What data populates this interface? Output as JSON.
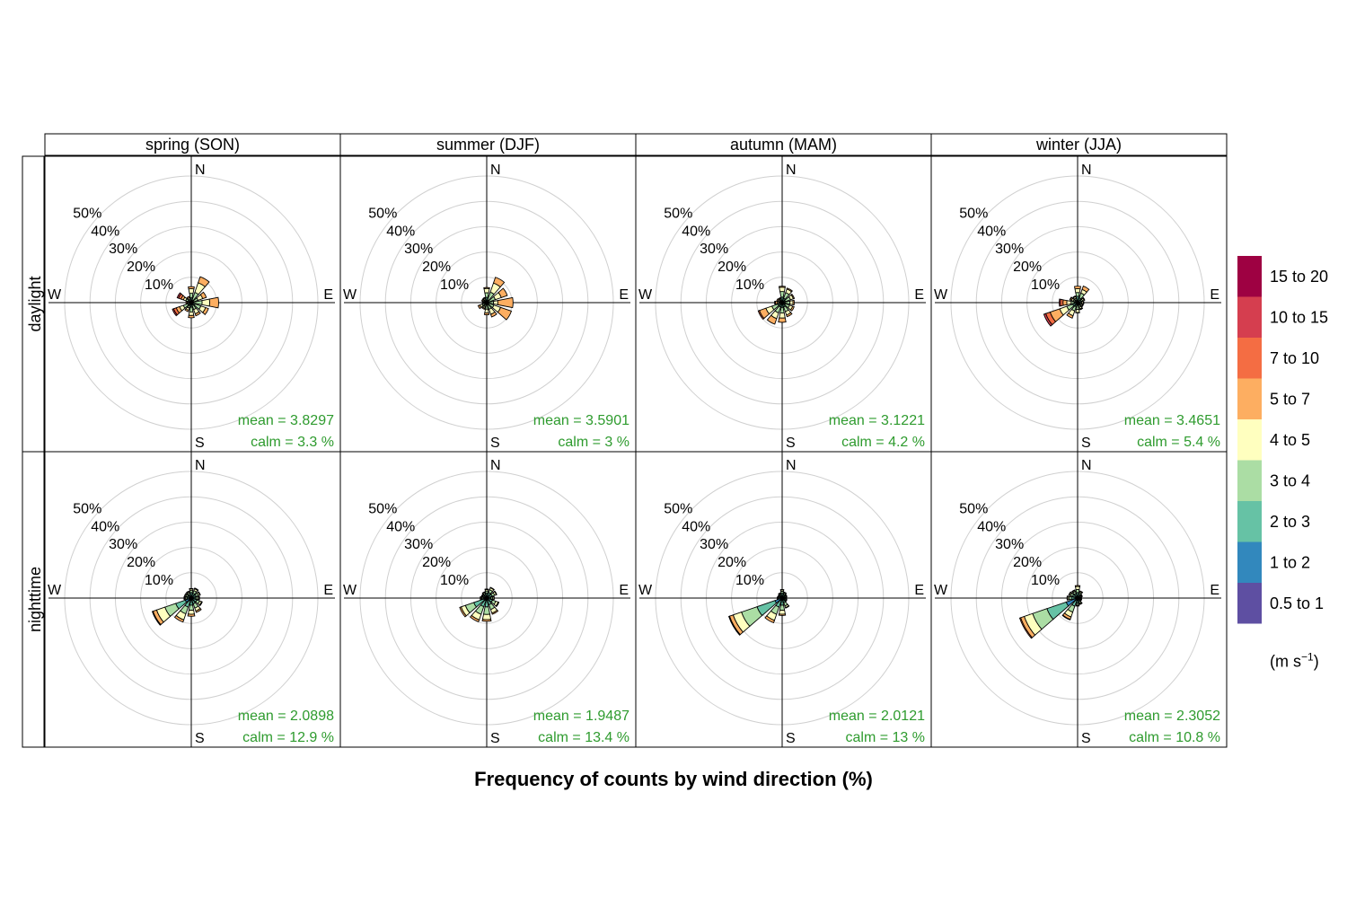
{
  "chart_data": {
    "type": "windrose",
    "title": "Frequency of counts by wind direction (%)",
    "columns": [
      "spring (SON)",
      "summer (DJF)",
      "autumn (MAM)",
      "winter (JJA)"
    ],
    "rows": [
      "daylight",
      "nighttime"
    ],
    "ring_percent": [
      10,
      20,
      30,
      40,
      50
    ],
    "ring_labels": [
      "10%",
      "20%",
      "30%",
      "40%",
      "50%"
    ],
    "direction_labels": {
      "N": "N",
      "E": "E",
      "S": "S",
      "W": "W"
    },
    "speed_bins": [
      "0.5 to 1",
      "1 to 2",
      "2 to 3",
      "3 to 4",
      "4 to 5",
      "5 to 7",
      "7 to 10",
      "10 to 15",
      "15 to 20"
    ],
    "bin_colors": [
      "#5e4fa2",
      "#3288bd",
      "#66c2a5",
      "#abdda4",
      "#ffffbf",
      "#fdae61",
      "#f46d43",
      "#d53e4f",
      "#9e0142"
    ],
    "legend_unit_prefix": "(m s",
    "legend_unit_exponent": "−1",
    "legend_unit_suffix": ")",
    "directions_deg": [
      0,
      30,
      60,
      90,
      120,
      150,
      180,
      210,
      240,
      270,
      300,
      330
    ],
    "panels": [
      {
        "column": "spring (SON)",
        "row": "daylight",
        "mean_label": "mean  =  3.8297",
        "calm_label": "calm =  3.3 %",
        "sectors": [
          [
            0,
            0.3,
            1.6,
            1.8,
            1.8,
            0.8,
            0,
            0,
            0
          ],
          [
            0,
            0.2,
            0.8,
            3.3,
            4.0,
            2.5,
            0,
            0,
            0
          ],
          [
            0,
            0.2,
            0.8,
            1.8,
            2.0,
            1.5,
            0,
            0,
            0
          ],
          [
            0,
            0.2,
            0.8,
            3.3,
            3.0,
            3.5,
            0,
            0,
            0
          ],
          [
            0,
            0.3,
            1.3,
            2.4,
            2.0,
            1.2,
            0,
            0,
            0
          ],
          [
            0,
            0.2,
            0.8,
            1.9,
            1.8,
            0.8,
            0,
            0,
            0
          ],
          [
            0,
            0.3,
            1.5,
            1.9,
            1.4,
            0.9,
            0,
            0,
            0
          ],
          [
            0,
            0.3,
            1.0,
            1.0,
            0.9,
            0.6,
            0,
            0,
            0
          ],
          [
            0,
            0.3,
            1.2,
            1.8,
            1.6,
            1.4,
            1.1,
            0.5,
            0
          ],
          [
            0,
            0.2,
            0.4,
            0.5,
            0.5,
            0.5,
            0,
            0,
            0
          ],
          [
            0,
            0.3,
            1.0,
            1.0,
            1.0,
            1.0,
            1.0,
            0.6,
            0
          ],
          [
            0,
            0.2,
            0.5,
            0.7,
            0.7,
            0.5,
            0,
            0,
            0
          ]
        ]
      },
      {
        "column": "summer (DJF)",
        "row": "daylight",
        "mean_label": "mean  =  3.5901",
        "calm_label": "calm =  3 %",
        "sectors": [
          [
            0,
            0.3,
            1.8,
            1.8,
            1.7,
            0.4,
            0,
            0,
            0
          ],
          [
            0,
            0.2,
            0.8,
            3.4,
            3.8,
            2.4,
            0,
            0,
            0
          ],
          [
            0,
            0.2,
            0.7,
            2.7,
            2.5,
            2.5,
            0,
            0,
            0
          ],
          [
            0,
            0.2,
            0.6,
            1.9,
            1.7,
            6.0,
            0,
            0,
            0
          ],
          [
            0,
            0.2,
            0.7,
            2.1,
            2.8,
            4.5,
            0,
            0,
            0
          ],
          [
            0,
            0.2,
            0.7,
            1.9,
            2.1,
            1.1,
            0,
            0,
            0
          ],
          [
            0,
            0.2,
            0.8,
            1.6,
            1.5,
            0.7,
            0,
            0,
            0
          ],
          [
            0,
            0.2,
            0.7,
            0.8,
            0.7,
            0.4,
            0,
            0,
            0
          ],
          [
            0,
            0.2,
            0.7,
            1.0,
            1.0,
            0.7,
            0,
            0,
            0
          ],
          [
            0,
            0.2,
            0.4,
            0.4,
            0.4,
            0.3,
            0,
            0,
            0
          ],
          [
            0,
            0.2,
            0.5,
            0.5,
            0.5,
            0.4,
            0,
            0,
            0
          ],
          [
            0,
            0.2,
            0.5,
            0.6,
            0.6,
            0.3,
            0,
            0,
            0
          ]
        ]
      },
      {
        "column": "autumn (MAM)",
        "row": "daylight",
        "mean_label": "mean  =  3.1221",
        "calm_label": "calm =  4.2 %",
        "sectors": [
          [
            0,
            0.3,
            1.9,
            2.2,
            1.7,
            0.4,
            0,
            0,
            0
          ],
          [
            0,
            0.3,
            1.5,
            2.4,
            1.5,
            0.4,
            0,
            0,
            0
          ],
          [
            0,
            0.3,
            1.0,
            2.2,
            1.2,
            0.4,
            0,
            0,
            0
          ],
          [
            0,
            0.3,
            0.8,
            2.0,
            1.2,
            0.5,
            0,
            0,
            0
          ],
          [
            0,
            0.3,
            1.0,
            1.8,
            1.3,
            0.6,
            0,
            0,
            0
          ],
          [
            0,
            0.3,
            1.5,
            2.0,
            1.4,
            0.7,
            0,
            0,
            0
          ],
          [
            0,
            0.3,
            1.6,
            2.2,
            2.0,
            1.7,
            0,
            0,
            0
          ],
          [
            0,
            0.3,
            1.5,
            2.5,
            2.4,
            2.3,
            0,
            0,
            0
          ],
          [
            0,
            0.3,
            1.5,
            2.5,
            2.5,
            2.7,
            0.5,
            0,
            0
          ],
          [
            0,
            0.2,
            0.5,
            0.6,
            0.6,
            0.8,
            0.3,
            0,
            0
          ],
          [
            0,
            0.2,
            0.5,
            0.5,
            0.6,
            0.5,
            0,
            0,
            0
          ],
          [
            0,
            0.2,
            0.5,
            0.5,
            0.5,
            0.4,
            0,
            0,
            0
          ]
        ]
      },
      {
        "column": "winter (JJA)",
        "row": "daylight",
        "mean_label": "mean  =  3.4651",
        "calm_label": "calm =  5.4 %",
        "sectors": [
          [
            0,
            0.5,
            2.0,
            1.5,
            1.5,
            1.0,
            0,
            0,
            0
          ],
          [
            0,
            0.5,
            1.5,
            2.0,
            1.5,
            1.4,
            0,
            0,
            0
          ],
          [
            0,
            0.5,
            1.0,
            0.6,
            0.6,
            0.3,
            0,
            0,
            0
          ],
          [
            0,
            0.4,
            0.7,
            0.6,
            0.6,
            0.2,
            0,
            0,
            0
          ],
          [
            0,
            0.4,
            0.7,
            0.6,
            0.5,
            0.2,
            0,
            0,
            0
          ],
          [
            0,
            0.4,
            0.8,
            0.8,
            0.7,
            0.3,
            0,
            0,
            0
          ],
          [
            0,
            0.4,
            0.7,
            1.6,
            1.2,
            0.2,
            0,
            0,
            0
          ],
          [
            0,
            0.5,
            1.2,
            1.8,
            2.0,
            1.0,
            0,
            0,
            0
          ],
          [
            0,
            0.5,
            1.5,
            2.5,
            3.0,
            4.0,
            1.8,
            0.8,
            0
          ],
          [
            0,
            0.3,
            1.0,
            1.3,
            1.7,
            1.5,
            1.0,
            0.5,
            0
          ],
          [
            0,
            0.3,
            0.7,
            0.8,
            0.8,
            0.5,
            0.2,
            0,
            0
          ],
          [
            0,
            0.3,
            0.7,
            0.8,
            0.7,
            0.3,
            0,
            0,
            0
          ]
        ]
      },
      {
        "column": "spring (SON)",
        "row": "nighttime",
        "mean_label": "mean  =  2.0898",
        "calm_label": "calm =  12.9 %",
        "sectors": [
          [
            0,
            0.6,
            1.6,
            0.8,
            0.6,
            0.2,
            0,
            0,
            0
          ],
          [
            0,
            0.5,
            1.5,
            1.1,
            0.8,
            0.3,
            0,
            0,
            0
          ],
          [
            0,
            0.5,
            1.5,
            1.0,
            0.6,
            0.2,
            0,
            0,
            0
          ],
          [
            0,
            0.4,
            1.4,
            0.8,
            0.5,
            0.2,
            0,
            0,
            0
          ],
          [
            0,
            0.5,
            1.8,
            1.2,
            0.8,
            0.3,
            0,
            0,
            0
          ],
          [
            0,
            0.6,
            1.8,
            1.8,
            1.2,
            0.6,
            0,
            0,
            0
          ],
          [
            0,
            0.8,
            2.0,
            2.0,
            1.6,
            0.8,
            0,
            0,
            0
          ],
          [
            0,
            1.2,
            2.6,
            2.8,
            2.5,
            0.9,
            0,
            0,
            0
          ],
          [
            0,
            2.5,
            4.0,
            4.5,
            3.5,
            1.5,
            0.3,
            0,
            0
          ],
          [
            0,
            0.8,
            0.9,
            0.6,
            0.4,
            0.2,
            0,
            0,
            0
          ],
          [
            0,
            0.6,
            1.0,
            0.7,
            0.4,
            0.1,
            0,
            0,
            0
          ],
          [
            0,
            0.5,
            1.0,
            0.7,
            0.5,
            0.2,
            0,
            0,
            0
          ]
        ]
      },
      {
        "column": "summer (DJF)",
        "row": "nighttime",
        "mean_label": "mean  =  1.9487",
        "calm_label": "calm =  13.4 %",
        "sectors": [
          [
            0,
            0.5,
            1.4,
            0.9,
            0.6,
            0.2,
            0,
            0,
            0
          ],
          [
            0,
            0.5,
            1.8,
            1.2,
            0.8,
            0.2,
            0,
            0,
            0
          ],
          [
            0,
            0.5,
            1.7,
            1.1,
            0.7,
            0.2,
            0,
            0,
            0
          ],
          [
            0,
            0.4,
            1.2,
            0.8,
            0.5,
            0.1,
            0,
            0,
            0
          ],
          [
            0,
            0.5,
            1.9,
            1.4,
            1.0,
            0.3,
            0,
            0,
            0
          ],
          [
            0,
            0.6,
            2.2,
            2.0,
            1.5,
            0.5,
            0,
            0,
            0
          ],
          [
            0,
            0.9,
            2.6,
            3.0,
            2.0,
            0.7,
            0,
            0,
            0
          ],
          [
            0,
            1.0,
            2.6,
            3.2,
            2.3,
            0.8,
            0,
            0,
            0
          ],
          [
            0,
            1.2,
            4.2,
            3.5,
            1.8,
            0.6,
            0,
            0,
            0
          ],
          [
            0,
            0.6,
            0.8,
            0.6,
            0.4,
            0.2,
            0,
            0,
            0
          ],
          [
            0,
            0.5,
            0.8,
            0.5,
            0.3,
            0.1,
            0,
            0,
            0
          ],
          [
            0,
            0.5,
            1.0,
            0.6,
            0.4,
            0.1,
            0,
            0,
            0
          ]
        ]
      },
      {
        "column": "autumn (MAM)",
        "row": "nighttime",
        "mean_label": "mean  =  2.0121",
        "calm_label": "calm =  13 %",
        "sectors": [
          [
            0,
            0.5,
            1.4,
            0.8,
            0.5,
            0.2,
            0,
            0,
            0
          ],
          [
            0,
            0.4,
            1.0,
            0.6,
            0.4,
            0.1,
            0,
            0,
            0
          ],
          [
            0,
            0.3,
            0.8,
            0.5,
            0.3,
            0.1,
            0,
            0,
            0
          ],
          [
            0,
            0.3,
            0.7,
            0.4,
            0.3,
            0.1,
            0,
            0,
            0
          ],
          [
            0,
            0.3,
            0.8,
            0.5,
            0.3,
            0.1,
            0,
            0,
            0
          ],
          [
            0,
            0.4,
            1.6,
            1.3,
            0.7,
            0.2,
            0,
            0,
            0
          ],
          [
            0,
            0.8,
            2.0,
            2.0,
            1.6,
            0.5,
            0,
            0,
            0
          ],
          [
            0,
            1.0,
            2.8,
            3.0,
            2.5,
            1.0,
            0,
            0,
            0
          ],
          [
            0,
            3.0,
            7.5,
            6.5,
            3.5,
            1.5,
            0.3,
            0,
            0
          ],
          [
            0,
            0.6,
            0.6,
            0.4,
            0.3,
            0.1,
            0,
            0,
            0
          ],
          [
            0,
            0.5,
            0.6,
            0.4,
            0.2,
            0.1,
            0,
            0,
            0
          ],
          [
            0,
            0.5,
            0.8,
            0.5,
            0.3,
            0.1,
            0,
            0,
            0
          ]
        ]
      },
      {
        "column": "winter (JJA)",
        "row": "nighttime",
        "mean_label": "mean  =  2.3052",
        "calm_label": "calm =  10.8 %",
        "sectors": [
          [
            0,
            0.6,
            1.6,
            1.2,
            1.2,
            0.4,
            0,
            0,
            0
          ],
          [
            0,
            0.6,
            1.0,
            0.7,
            0.5,
            0.2,
            0,
            0,
            0
          ],
          [
            0,
            0.5,
            0.7,
            0.4,
            0.3,
            0.1,
            0,
            0,
            0
          ],
          [
            0,
            0.4,
            0.6,
            0.3,
            0.2,
            0.1,
            0,
            0,
            0
          ],
          [
            0,
            0.4,
            0.6,
            0.4,
            0.2,
            0.1,
            0,
            0,
            0
          ],
          [
            0,
            0.5,
            0.9,
            0.7,
            0.4,
            0.2,
            0,
            0,
            0
          ],
          [
            0.4,
            0.6,
            1.0,
            0.6,
            0.4,
            0.2,
            0,
            0,
            0
          ],
          [
            0,
            0.9,
            2.5,
            2.5,
            2.0,
            1.0,
            0.2,
            0,
            0
          ],
          [
            0.8,
            4.0,
            8.0,
            6.0,
            3.5,
            1.5,
            0.4,
            0,
            0
          ],
          [
            0,
            1.0,
            1.5,
            0.9,
            0.5,
            0.3,
            0,
            0,
            0
          ],
          [
            0,
            0.8,
            1.3,
            0.9,
            0.5,
            0.2,
            0,
            0,
            0
          ],
          [
            0,
            0.6,
            1.3,
            0.9,
            0.4,
            0.2,
            0,
            0,
            0
          ]
        ]
      }
    ]
  }
}
